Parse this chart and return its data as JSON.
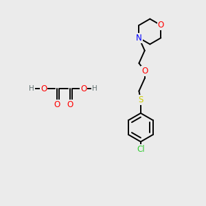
{
  "bg_color": "#ebebeb",
  "atom_colors": {
    "O": "#ff0000",
    "N": "#0000ff",
    "S": "#cccc00",
    "Cl": "#33cc33",
    "C": "#000000",
    "H": "#607070"
  },
  "bond_color": "#000000",
  "bond_width": 1.4,
  "font_size_atom": 8.5,
  "font_size_h": 7.5,
  "figsize": [
    3.0,
    3.0
  ],
  "dpi": 100
}
